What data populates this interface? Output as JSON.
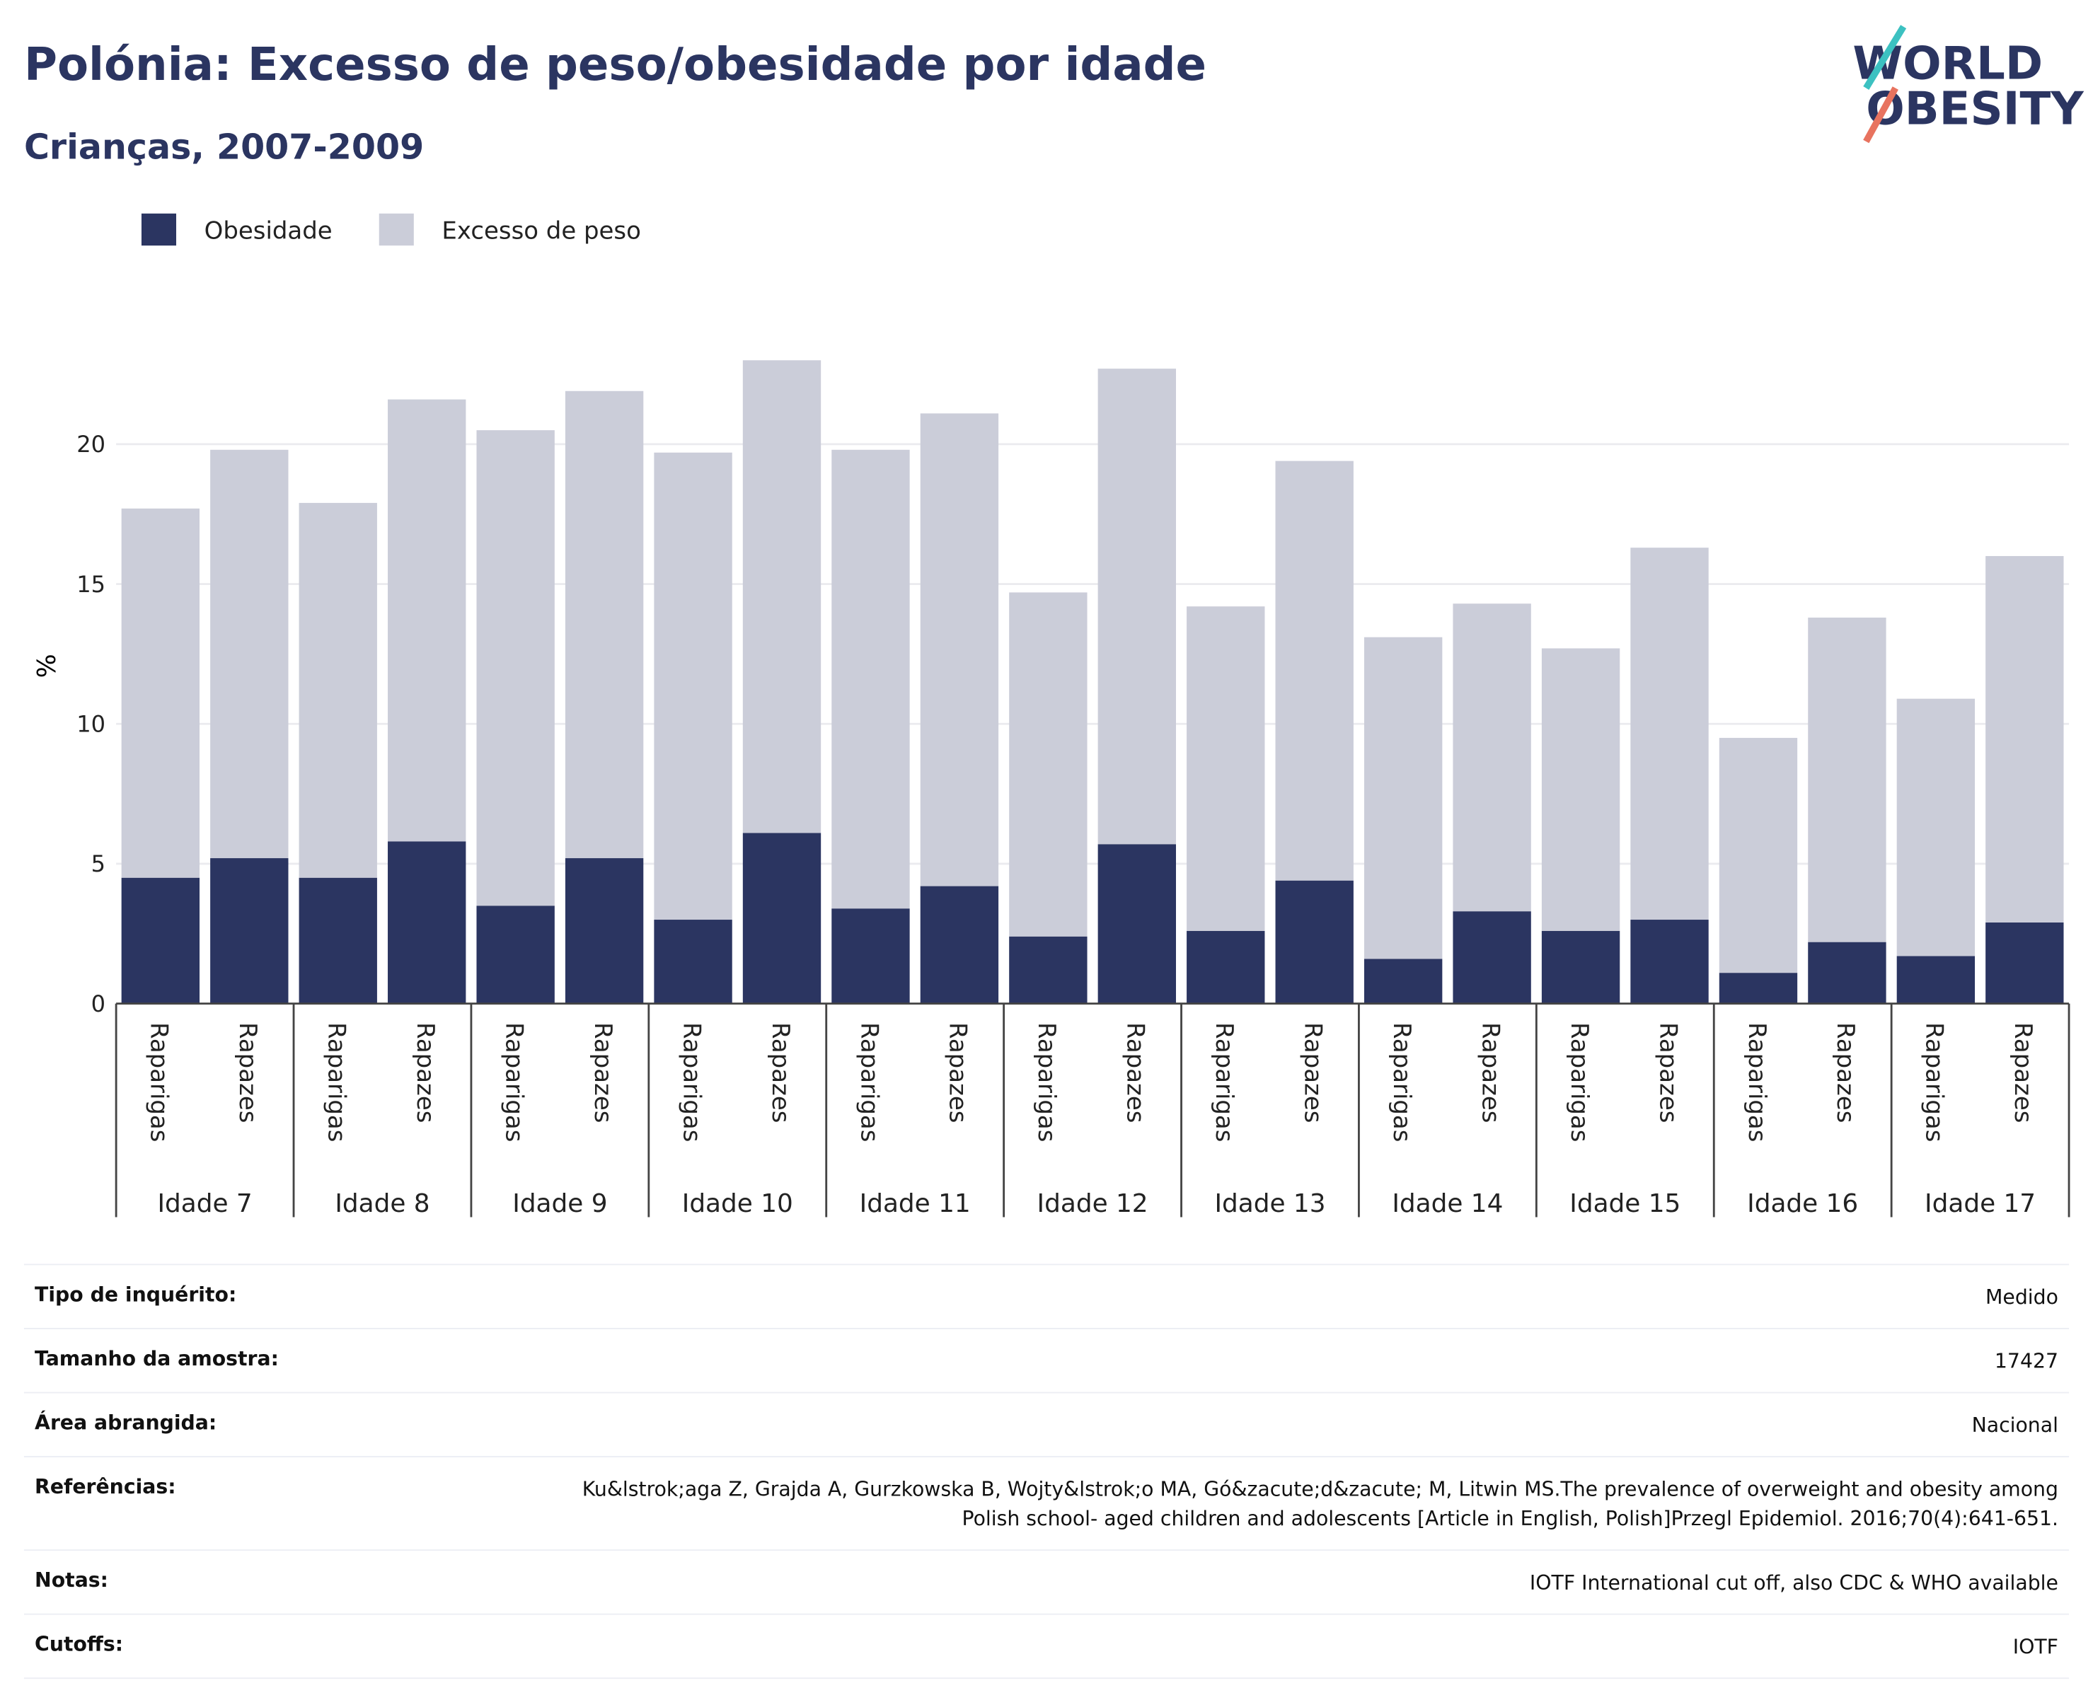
{
  "chart_data": {
    "type": "stacked_bar",
    "title": "Polónia: Excesso de peso/obesidade por idade",
    "subtitle": "Crianças, 2007-2009",
    "y_label": "%",
    "categories": [
      "Raparigas",
      "Rapazes",
      "Raparigas",
      "Rapazes",
      "Raparigas",
      "Rapazes",
      "Raparigas",
      "Rapazes",
      "Raparigas",
      "Rapazes",
      "Raparigas",
      "Rapazes",
      "Raparigas",
      "Rapazes",
      "Raparigas",
      "Rapazes",
      "Raparigas",
      "Rapazes",
      "Raparigas",
      "Rapazes",
      "Raparigas",
      "Rapazes"
    ],
    "groups": [
      "Idade 7",
      "Idade 8",
      "Idade 9",
      "Idade 10",
      "Idade 11",
      "Idade 12",
      "Idade 13",
      "Idade 14",
      "Idade 15",
      "Idade 16",
      "Idade 17"
    ],
    "series": [
      {
        "name": "Obesidade",
        "color": "#2b3561",
        "values": [
          4.5,
          5.2,
          4.5,
          5.8,
          3.5,
          5.2,
          3.0,
          6.1,
          3.4,
          4.2,
          2.4,
          5.7,
          2.6,
          4.4,
          1.6,
          3.3,
          2.6,
          3.0,
          1.1,
          2.2,
          1.7,
          2.9
        ]
      },
      {
        "name": "Excesso de peso",
        "color": "#cbcdd9",
        "values": [
          13.2,
          14.6,
          13.4,
          15.8,
          17.0,
          16.7,
          16.7,
          16.9,
          16.4,
          16.9,
          12.3,
          17.0,
          11.6,
          15.0,
          11.5,
          11.0,
          10.1,
          13.3,
          8.4,
          11.6,
          9.2,
          13.1
        ]
      }
    ],
    "ylim": [
      0,
      24
    ],
    "yticks": [
      0,
      5,
      10,
      15,
      20
    ],
    "grid": true,
    "legend": "top-left"
  },
  "logo": {
    "line1": "WORLD",
    "line2": "OBESITY"
  },
  "table": {
    "rows": [
      [
        "Tipo de inquérito:",
        "Medido"
      ],
      [
        "Tamanho da amostra:",
        "17427"
      ],
      [
        "Área abrangida:",
        "Nacional"
      ],
      [
        "Referências:",
        "Ku&lstrok;aga Z, Grajda A, Gurzkowska B, Wojty&lstrok;o MA, Gó&zacute;d&zacute; M, Litwin MS.The prevalence of overweight and obesity among Polish school- aged children and adolescents [Article in English, Polish]Przegl Epidemiol. 2016;70(4):641-651."
      ],
      [
        "Notas:",
        "IOTF International cut off, also CDC & WHO available"
      ],
      [
        "Cutoffs:",
        "IOTF"
      ]
    ]
  }
}
